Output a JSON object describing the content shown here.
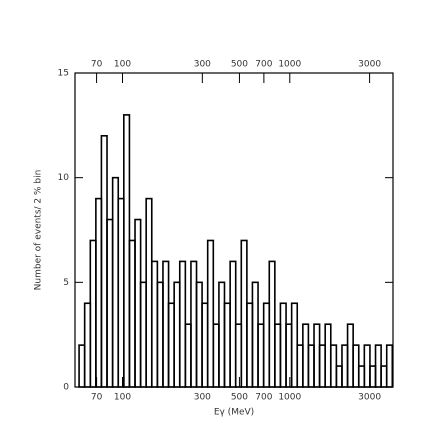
{
  "chart_data": {
    "type": "histogram",
    "x_label": "Eγ (MeV)",
    "y_label": "Number of events/ 2 % bin",
    "xscale": "log",
    "xlim": [
      52,
      4140
    ],
    "xticks": [
      70,
      100,
      300,
      500,
      700,
      1000,
      3000
    ],
    "ylim": [
      0,
      15
    ],
    "yticks": [
      0,
      5,
      10,
      15
    ],
    "color": "#000000",
    "bins": [
      55,
      59.4,
      64.2,
      69.3,
      74.8,
      80.8,
      87.3,
      94.3,
      101.8,
      110,
      118.8,
      128.3,
      138.5,
      149.6,
      161.6,
      174.5,
      188.5,
      203.6,
      219.9,
      237.5,
      256.5,
      277,
      299,
      323,
      349,
      377,
      407,
      440,
      475,
      513,
      554,
      598,
      646,
      698,
      754,
      814,
      879,
      950,
      1026,
      1108,
      1197,
      1292,
      1396,
      1507,
      1628,
      1758,
      1899,
      2051,
      2215,
      2392,
      2584,
      2790,
      3014,
      3255,
      3515,
      3797,
      4100
    ],
    "values": [
      2,
      4,
      7,
      9,
      12,
      8,
      10,
      9,
      13,
      7,
      8,
      5,
      9,
      6,
      5,
      6,
      4,
      5,
      6,
      3,
      6,
      5,
      4,
      7,
      3,
      5,
      4,
      6,
      3,
      7,
      4,
      5,
      3,
      4,
      6,
      3,
      4,
      3,
      4,
      2,
      3,
      2,
      3,
      2,
      3,
      2,
      1,
      2,
      3,
      2,
      1,
      2,
      1,
      2,
      1,
      2
    ]
  }
}
